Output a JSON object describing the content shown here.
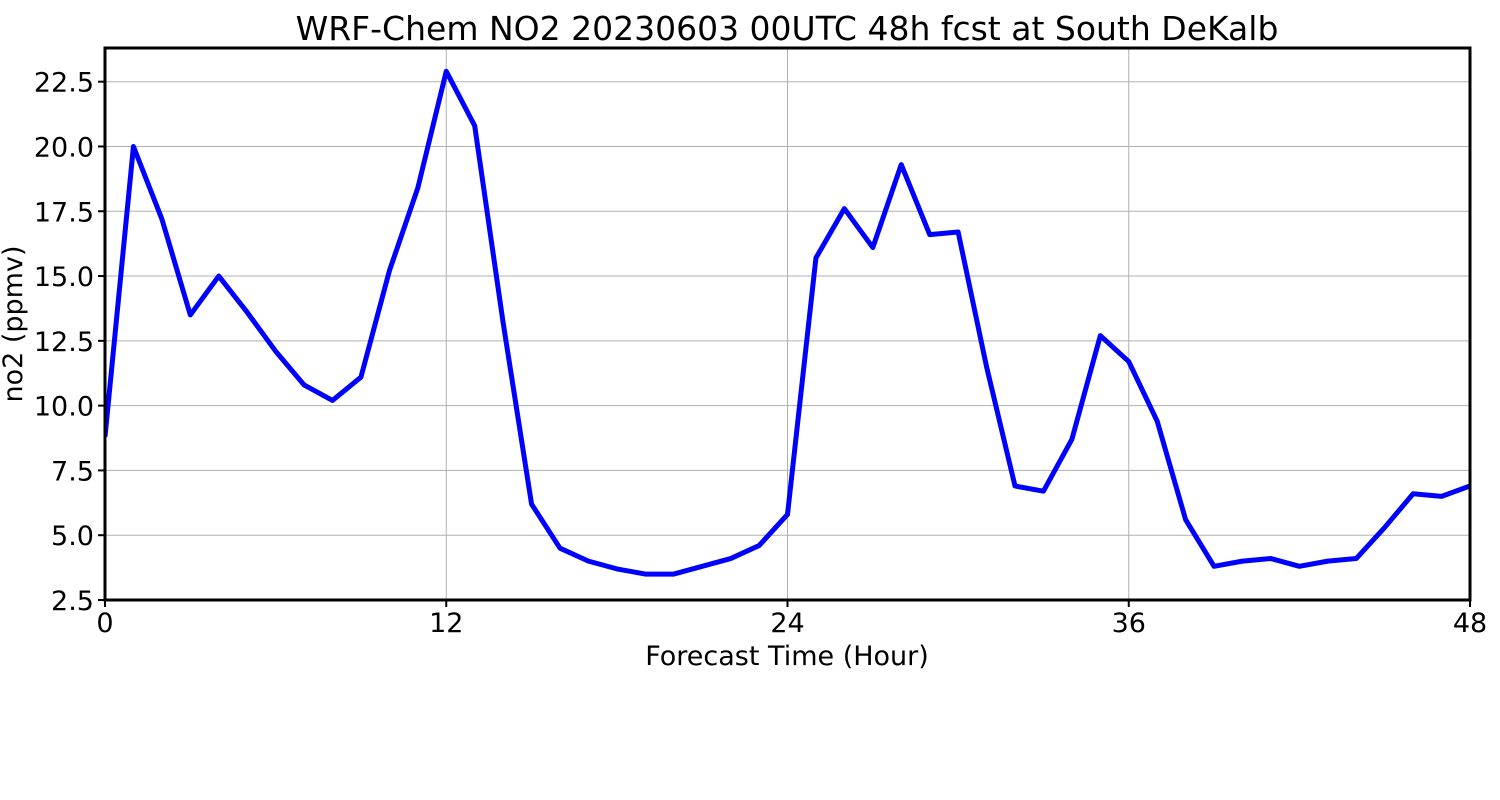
{
  "chart_data": {
    "type": "line",
    "title": "WRF-Chem NO2  20230603 00UTC 48h fcst at South DeKalb",
    "xlabel": "Forecast Time (Hour)",
    "ylabel": "no2  (ppmv)",
    "xlim": [
      0,
      48
    ],
    "ylim": [
      2.5,
      23.8
    ],
    "xticks": [
      0,
      12,
      24,
      36,
      48
    ],
    "xtick_labels": [
      "0",
      "12",
      "24",
      "36",
      "48"
    ],
    "yticks": [
      2.5,
      5.0,
      7.5,
      10.0,
      12.5,
      15.0,
      17.5,
      20.0,
      22.5
    ],
    "ytick_labels": [
      "2.5",
      "5.0",
      "7.5",
      "10.0",
      "12.5",
      "15.0",
      "17.5",
      "20.0",
      "22.5"
    ],
    "grid": true,
    "series": [
      {
        "color": "#0000ff",
        "x": [
          0,
          1,
          2,
          3,
          4,
          5,
          6,
          7,
          8,
          9,
          10,
          11,
          12,
          13,
          14,
          15,
          16,
          17,
          18,
          19,
          20,
          21,
          22,
          23,
          24,
          25,
          26,
          27,
          28,
          29,
          30,
          31,
          32,
          33,
          34,
          35,
          36,
          37,
          38,
          39,
          40,
          41,
          42,
          43,
          44,
          45,
          46,
          47,
          48
        ],
        "values": [
          8.8,
          20.0,
          17.2,
          13.5,
          15.0,
          13.6,
          12.1,
          10.8,
          10.2,
          11.1,
          15.2,
          18.4,
          22.9,
          20.8,
          13.2,
          6.2,
          4.5,
          4.0,
          3.7,
          3.5,
          3.5,
          3.8,
          4.1,
          4.6,
          5.8,
          15.7,
          17.6,
          16.1,
          19.3,
          16.6,
          16.7,
          11.5,
          6.9,
          6.7,
          8.7,
          12.7,
          11.7,
          9.4,
          5.6,
          3.8,
          4.0,
          4.1,
          3.8,
          4.0,
          4.1,
          5.3,
          6.6,
          6.5,
          6.9
        ]
      }
    ]
  }
}
